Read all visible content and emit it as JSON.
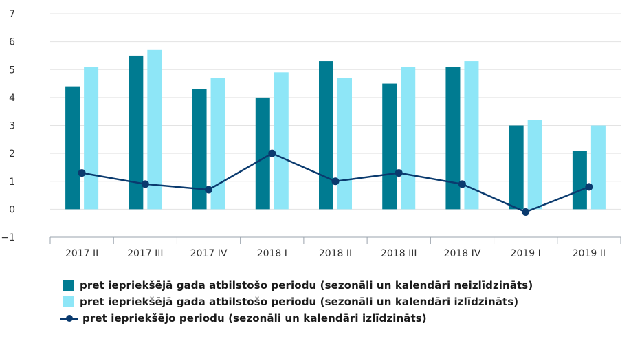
{
  "chart_data": {
    "type": "bar",
    "categories": [
      "2017 II",
      "2017 III",
      "2017 IV",
      "2018 I",
      "2018 II",
      "2018 III",
      "2018 IV",
      "2019 I",
      "2019 II"
    ],
    "ylim": [
      -1,
      7
    ],
    "yticks": [
      -1,
      0,
      1,
      2,
      3,
      4,
      5,
      6,
      7
    ],
    "ytick_labels": [
      "−1",
      "0",
      "1",
      "2",
      "3",
      "4",
      "5",
      "6",
      "7"
    ],
    "grid": true,
    "legend_position": "bottom",
    "series": [
      {
        "name": "pret iepriekšējā gada atbilstošo periodu (sezonāli un kalendāri neizlīdzināts)",
        "kind": "bar",
        "color": "#007b91",
        "values": [
          4.4,
          5.5,
          4.3,
          4.0,
          5.3,
          4.5,
          5.1,
          3.0,
          2.1
        ]
      },
      {
        "name": "pret iepriekšējā gada atbilstošo periodu (sezonāli un kalendāri izlīdzināts)",
        "kind": "bar",
        "color": "#8ee6f7",
        "values": [
          5.1,
          5.7,
          4.7,
          4.9,
          4.7,
          5.1,
          5.3,
          3.2,
          3.0
        ]
      },
      {
        "name": "pret iepriekšējo periodu (sezonāli un kalendāri izlīdzināts)",
        "kind": "line",
        "color": "#0a3a6e",
        "values": [
          1.3,
          0.9,
          0.7,
          2.0,
          1.0,
          1.3,
          0.9,
          -0.1,
          0.8
        ]
      }
    ]
  }
}
